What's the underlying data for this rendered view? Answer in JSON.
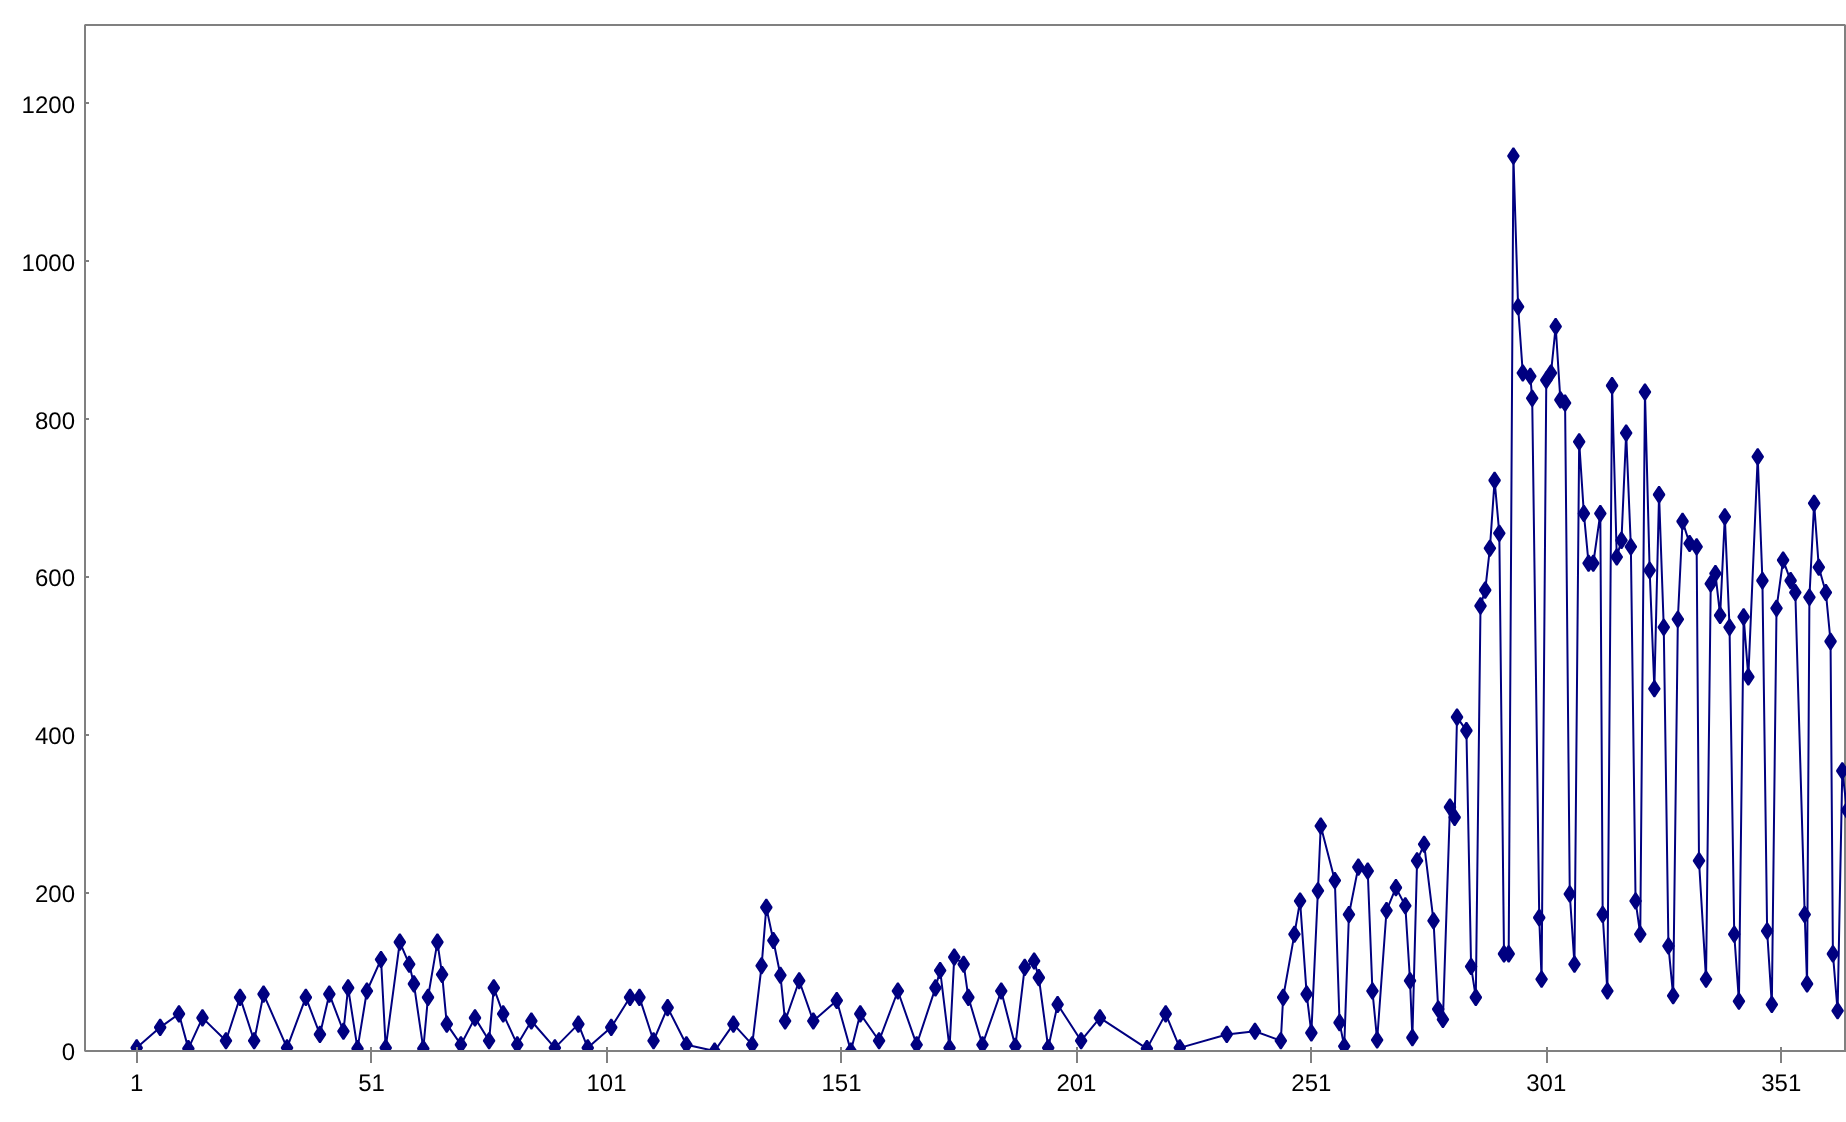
{
  "chart_data": {
    "type": "line",
    "marker": "diamond",
    "line_style": "solid",
    "grid": false,
    "xlim": [
      -10,
      365
    ],
    "ylim": [
      0,
      1300
    ],
    "xticks": [
      1,
      51,
      101,
      151,
      201,
      251,
      301,
      351
    ],
    "yticks": [
      0,
      200,
      400,
      600,
      800,
      1000,
      1200
    ],
    "series": [
      {
        "color": "#000080",
        "x": [
          1,
          6,
          10,
          12,
          15,
          20,
          23,
          26,
          28,
          33,
          37,
          40,
          42,
          45,
          46,
          48,
          50,
          53,
          54,
          57,
          59,
          60,
          62,
          63,
          65,
          66,
          67,
          70,
          73,
          76,
          77,
          79,
          82,
          85,
          90,
          95,
          97,
          102,
          106,
          108,
          111,
          114,
          118,
          124,
          128,
          132,
          134,
          135,
          136.5,
          138,
          139,
          142,
          145,
          150,
          153,
          155,
          159,
          163,
          167,
          171,
          172,
          174,
          175,
          177,
          178,
          181,
          185,
          188,
          190,
          192,
          193,
          195,
          197,
          202,
          206,
          216,
          220,
          223,
          233,
          239,
          244.5,
          245,
          247.4,
          248.6,
          250,
          251,
          252.4,
          253,
          256,
          257,
          258,
          259,
          261,
          263,
          264,
          265,
          267,
          269,
          271,
          272,
          272.5,
          273.5,
          275,
          277,
          278,
          279,
          280.5,
          281.5,
          282,
          284,
          285,
          286,
          287,
          288,
          289,
          290,
          291,
          292,
          293,
          294,
          295,
          296,
          297.6,
          298,
          299.5,
          300,
          301,
          302,
          303,
          304,
          305,
          306,
          307,
          308,
          309,
          310,
          311,
          312.5,
          313,
          314,
          315,
          316,
          317,
          318,
          319,
          320,
          321,
          322,
          323,
          324,
          325,
          326,
          327,
          328,
          329,
          330,
          331.5,
          333,
          333.5,
          335,
          336,
          337,
          338,
          339,
          340,
          341,
          342,
          343,
          344,
          346,
          347,
          348,
          349,
          350,
          351.4,
          353,
          354,
          356,
          356.5,
          357,
          358,
          359,
          360.5,
          361.5,
          362,
          363,
          364,
          365
        ],
        "values": [
          4,
          30,
          47,
          3,
          42,
          13,
          68,
          13,
          72,
          4,
          68,
          21,
          72,
          25,
          80,
          3,
          76,
          116,
          4,
          138,
          110,
          85,
          3,
          68,
          138,
          97,
          34,
          8,
          42,
          13,
          80,
          47,
          8,
          38,
          4,
          34,
          4,
          30,
          68,
          68,
          13,
          55,
          8,
          0,
          34,
          8,
          108,
          182,
          140,
          96,
          38,
          89,
          38,
          64,
          0,
          47,
          13,
          76,
          8,
          80,
          102,
          4,
          119,
          110,
          68,
          8,
          76,
          6,
          106,
          114,
          93,
          4,
          59,
          13,
          42,
          3,
          47,
          4,
          21,
          25,
          13,
          68,
          148,
          190,
          72,
          23,
          203,
          285,
          216,
          36,
          6,
          173,
          233,
          228,
          76,
          14,
          178,
          207,
          184,
          89,
          17,
          241,
          262,
          165,
          53,
          40,
          309,
          296,
          423,
          406,
          107,
          68,
          564,
          584,
          637,
          723,
          656,
          123,
          123,
          1134,
          943,
          859,
          855,
          827,
          169,
          91,
          850,
          859,
          918,
          825,
          821,
          199,
          110,
          772,
          681,
          618,
          618,
          681,
          173,
          76,
          843,
          626,
          647,
          783,
          639,
          190,
          148,
          835,
          609,
          459,
          705,
          537,
          133,
          70,
          547,
          671,
          643,
          639,
          241,
          91,
          592,
          605,
          552,
          677,
          537,
          148,
          63,
          550,
          474,
          753,
          596,
          152,
          59,
          561,
          622,
          596,
          581,
          173,
          85,
          575,
          694,
          613,
          581,
          519,
          123,
          51,
          355,
          305
        ]
      }
    ]
  }
}
